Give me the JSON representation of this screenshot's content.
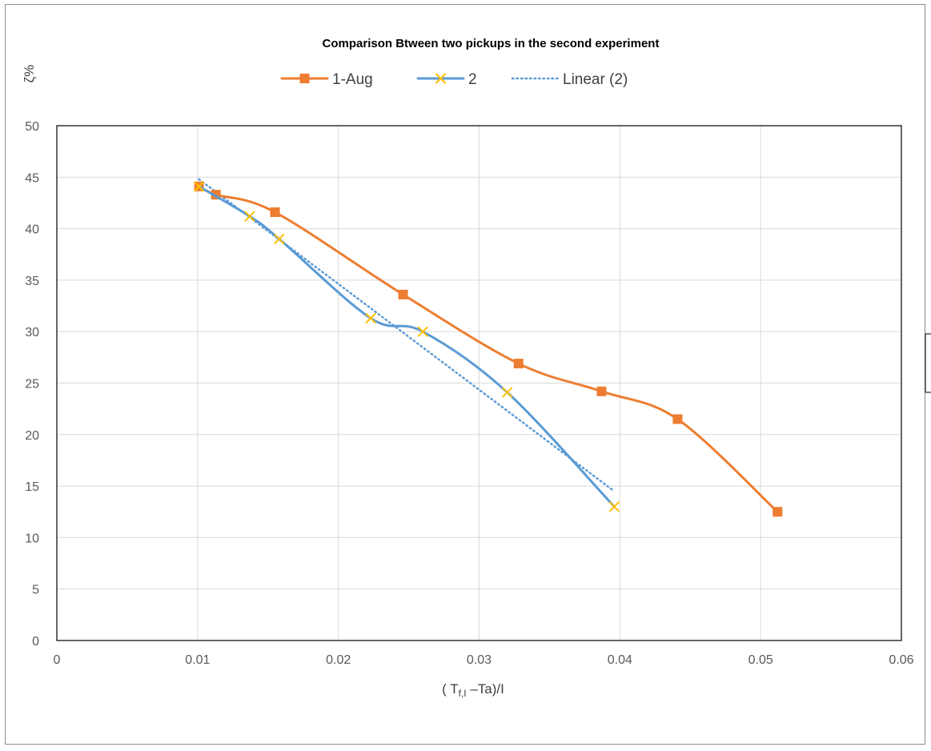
{
  "chart_data": {
    "type": "line",
    "title": "Comparison Btween two pickups in the second experiment",
    "xlabel_parts": {
      "open": "( T",
      "sub": "f,I",
      "rest": " –Ta)/I"
    },
    "ylabel": "ζ%",
    "xlim": [
      0,
      0.06
    ],
    "ylim": [
      0,
      50
    ],
    "x_ticks": [
      "0",
      "0.01",
      "0.02",
      "0.03",
      "0.04",
      "0.05",
      "0.06"
    ],
    "y_ticks": [
      "0",
      "5",
      "10",
      "15",
      "20",
      "25",
      "30",
      "35",
      "40",
      "45",
      "50"
    ],
    "grid": true,
    "legend_position": "top",
    "series": [
      {
        "name": "1-Aug",
        "color": "#ED7D31",
        "marker": "square",
        "smooth": true,
        "x": [
          0.0101,
          0.0113,
          0.0155,
          0.0246,
          0.0328,
          0.0387,
          0.0441,
          0.0512
        ],
        "y": [
          44.1,
          43.3,
          41.6,
          33.6,
          26.9,
          24.2,
          21.5,
          12.5
        ]
      },
      {
        "name": "2",
        "color": "#5B9BD5",
        "marker": "x",
        "marker_color": "#FFC000",
        "smooth": true,
        "x": [
          0.0101,
          0.0137,
          0.0158,
          0.0223,
          0.026,
          0.032,
          0.0396
        ],
        "y": [
          44.1,
          41.2,
          39.0,
          31.3,
          30.0,
          24.1,
          13.0
        ]
      },
      {
        "name": "Linear (2)",
        "color": "#5B9BD5",
        "style": "dotted",
        "x": [
          0.0101,
          0.0396
        ],
        "y": [
          44.8,
          14.5
        ]
      }
    ]
  }
}
